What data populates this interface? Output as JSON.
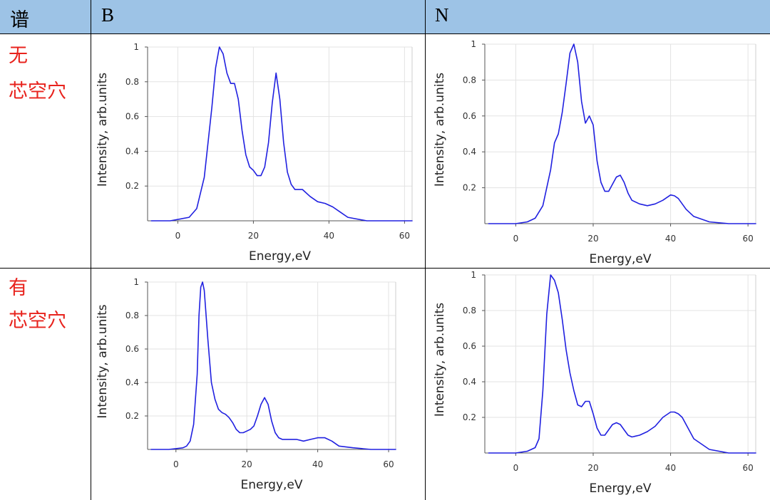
{
  "header": {
    "col0": "谱",
    "col1": "B",
    "col2": "N"
  },
  "rows": [
    {
      "line1": "无",
      "line2": "芯空穴"
    },
    {
      "line1": "有",
      "line2": "芯空穴"
    }
  ],
  "colors": {
    "header_bg": "#9dc3e6",
    "label_red": "#e8231d",
    "curve": "#2020e0"
  },
  "chart_data": [
    {
      "type": "line",
      "title": "B, 无芯空穴",
      "xlabel": "Energy,eV",
      "ylabel": "Intensity, arb.units",
      "xlim": [
        -8,
        62
      ],
      "ylim": [
        0,
        1
      ],
      "xticks": [
        0,
        20,
        40,
        60
      ],
      "yticks": [
        0.2,
        0.4,
        0.6,
        0.8,
        1
      ],
      "ytick_labels": [
        "0.2",
        "0.4",
        "0.6",
        "0.8",
        "1"
      ],
      "series": [
        {
          "name": "B",
          "x": [
            -7,
            -2,
            3,
            5,
            7,
            9,
            10,
            11,
            12,
            13,
            14,
            15,
            16,
            17,
            18,
            19,
            20,
            21,
            22,
            23,
            24,
            25,
            26,
            27,
            28,
            29,
            30,
            31,
            33,
            35,
            37,
            39,
            41,
            43,
            45,
            50,
            55,
            62
          ],
          "y": [
            0.0,
            0.0,
            0.02,
            0.07,
            0.25,
            0.65,
            0.88,
            1.0,
            0.96,
            0.85,
            0.79,
            0.79,
            0.7,
            0.52,
            0.38,
            0.31,
            0.29,
            0.26,
            0.26,
            0.31,
            0.45,
            0.68,
            0.85,
            0.7,
            0.45,
            0.28,
            0.21,
            0.18,
            0.18,
            0.14,
            0.11,
            0.1,
            0.08,
            0.05,
            0.02,
            0.0,
            0.0,
            0.0
          ]
        }
      ]
    },
    {
      "type": "line",
      "title": "N, 无芯空穴",
      "xlabel": "Energy,eV",
      "ylabel": "Intensity, arb.units",
      "xlim": [
        -8,
        62
      ],
      "ylim": [
        0,
        1
      ],
      "xticks": [
        0,
        20,
        40,
        60
      ],
      "yticks": [
        0.2,
        0.4,
        0.6,
        0.8,
        1
      ],
      "ytick_labels": [
        "0.2",
        "0.4",
        "0.6",
        "0.8",
        "1"
      ],
      "series": [
        {
          "name": "N",
          "x": [
            -7,
            0,
            3,
            5,
            7,
            9,
            10,
            11,
            12,
            13,
            14,
            15,
            16,
            17,
            18,
            19,
            20,
            21,
            22,
            23,
            24,
            25,
            26,
            27,
            28,
            29,
            30,
            32,
            34,
            36,
            38,
            40,
            41,
            42,
            43,
            44,
            46,
            50,
            55,
            62
          ],
          "y": [
            0.0,
            0.0,
            0.01,
            0.03,
            0.1,
            0.3,
            0.45,
            0.5,
            0.62,
            0.78,
            0.95,
            1.0,
            0.9,
            0.68,
            0.56,
            0.6,
            0.55,
            0.35,
            0.23,
            0.18,
            0.18,
            0.22,
            0.26,
            0.27,
            0.23,
            0.17,
            0.13,
            0.11,
            0.1,
            0.11,
            0.13,
            0.16,
            0.155,
            0.14,
            0.11,
            0.08,
            0.04,
            0.01,
            0.0,
            0.0
          ]
        }
      ]
    },
    {
      "type": "line",
      "title": "B, 有芯空穴",
      "xlabel": "Energy,eV",
      "ylabel": "Intensity, arb.units",
      "xlim": [
        -8,
        62
      ],
      "ylim": [
        0,
        1
      ],
      "xticks": [
        0,
        20,
        40,
        60
      ],
      "yticks": [
        0.2,
        0.4,
        0.6,
        0.8,
        1
      ],
      "ytick_labels": [
        "0.2",
        "0.4",
        "0.6",
        "0.8",
        "1"
      ],
      "series": [
        {
          "name": "B",
          "x": [
            -7,
            -2,
            2,
            3,
            4,
            5,
            6,
            6.5,
            7,
            7.5,
            8,
            9,
            10,
            11,
            12,
            13,
            14,
            15,
            16,
            17,
            18,
            19,
            20,
            21,
            22,
            23,
            24,
            25,
            26,
            27,
            28,
            29,
            30,
            32,
            34,
            36,
            38,
            40,
            42,
            44,
            46,
            50,
            55,
            62
          ],
          "y": [
            0.0,
            0.0,
            0.01,
            0.02,
            0.05,
            0.15,
            0.45,
            0.8,
            0.97,
            1.0,
            0.95,
            0.66,
            0.4,
            0.3,
            0.24,
            0.22,
            0.21,
            0.19,
            0.16,
            0.12,
            0.1,
            0.1,
            0.11,
            0.12,
            0.14,
            0.2,
            0.27,
            0.31,
            0.27,
            0.17,
            0.1,
            0.07,
            0.06,
            0.06,
            0.06,
            0.05,
            0.06,
            0.07,
            0.07,
            0.05,
            0.02,
            0.01,
            0.0,
            0.0
          ]
        }
      ]
    },
    {
      "type": "line",
      "title": "N, 有芯空穴",
      "xlabel": "Energy,eV",
      "ylabel": "Intensity, arb.units",
      "xlim": [
        -8,
        62
      ],
      "ylim": [
        0,
        1
      ],
      "xticks": [
        0,
        20,
        40,
        60
      ],
      "yticks": [
        0.2,
        0.4,
        0.6,
        0.8,
        1
      ],
      "ytick_labels": [
        "0.2",
        "0.4",
        "0.6",
        "0.8",
        "1"
      ],
      "series": [
        {
          "name": "N",
          "x": [
            -7,
            0,
            3,
            5,
            6,
            7,
            8,
            9,
            10,
            11,
            12,
            13,
            14,
            15,
            16,
            17,
            18,
            19,
            20,
            21,
            22,
            23,
            24,
            25,
            26,
            27,
            28,
            29,
            30,
            32,
            34,
            36,
            38,
            40,
            41,
            42,
            43,
            44,
            46,
            50,
            55,
            62
          ],
          "y": [
            0.0,
            0.0,
            0.01,
            0.03,
            0.08,
            0.35,
            0.78,
            1.0,
            0.97,
            0.9,
            0.75,
            0.58,
            0.45,
            0.35,
            0.27,
            0.26,
            0.29,
            0.29,
            0.22,
            0.14,
            0.1,
            0.1,
            0.13,
            0.16,
            0.17,
            0.16,
            0.13,
            0.1,
            0.09,
            0.1,
            0.12,
            0.15,
            0.2,
            0.23,
            0.23,
            0.22,
            0.2,
            0.16,
            0.08,
            0.02,
            0.0,
            0.0
          ]
        }
      ]
    }
  ]
}
